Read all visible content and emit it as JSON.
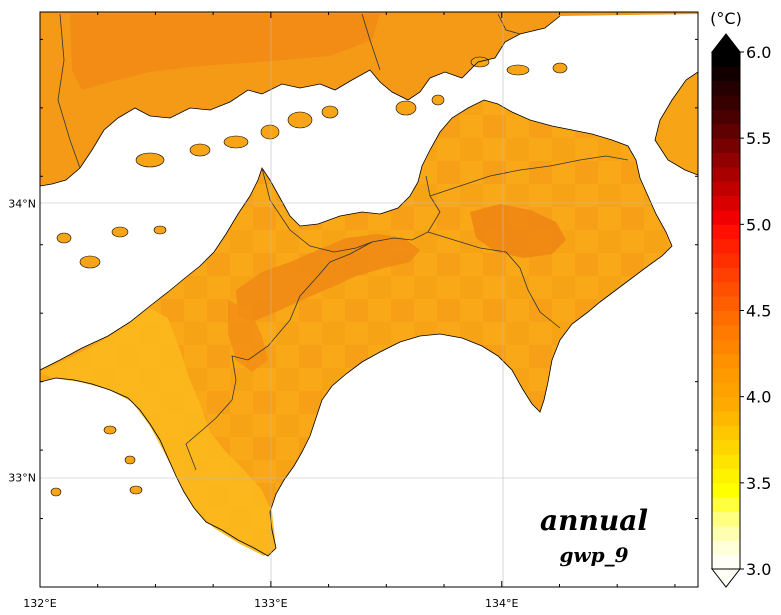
{
  "map": {
    "title": "annual",
    "subtitle": "gwp_9",
    "lon_ticks": [
      {
        "value": 132,
        "label": "132°E"
      },
      {
        "value": 133,
        "label": "133°E"
      },
      {
        "value": 134,
        "label": "134°E"
      }
    ],
    "lat_ticks": [
      {
        "value": 34,
        "label": "34°N"
      },
      {
        "value": 33,
        "label": "33°N"
      }
    ],
    "lon_range": [
      132,
      134.85
    ],
    "lat_range": [
      32.6,
      34.7
    ],
    "land_color": "#f7a517",
    "sea_color": "#ffffff"
  },
  "colorbar": {
    "unit": "(°C)",
    "min": 3.0,
    "max": 6.0,
    "labels": [
      "6.0",
      "5.5",
      "5.0",
      "4.5",
      "4.0",
      "3.5",
      "3.0"
    ],
    "label_values": [
      6.0,
      5.5,
      5.0,
      4.5,
      4.0,
      3.5,
      3.0
    ],
    "colors_bottom_to_top": [
      "#fffff5",
      "#ffffd9",
      "#ffffb0",
      "#ffff80",
      "#ffff40",
      "#ffff00",
      "#fff200",
      "#ffe400",
      "#ffd500",
      "#ffc700",
      "#ffb800",
      "#ffaa00",
      "#ffa200",
      "#ff9a00",
      "#ff9000",
      "#ff8400",
      "#ff7a00",
      "#ff6c00",
      "#ff5e00",
      "#ff5000",
      "#ff4000",
      "#ff3000",
      "#ff2000",
      "#ff1000",
      "#f00000",
      "#d80000",
      "#c00000",
      "#a80000",
      "#900000",
      "#780000",
      "#600000",
      "#4a0000",
      "#360000",
      "#240000",
      "#120000",
      "#000000"
    ],
    "extend_top_color": "#000000",
    "extend_bottom_color": "#ffffff"
  }
}
